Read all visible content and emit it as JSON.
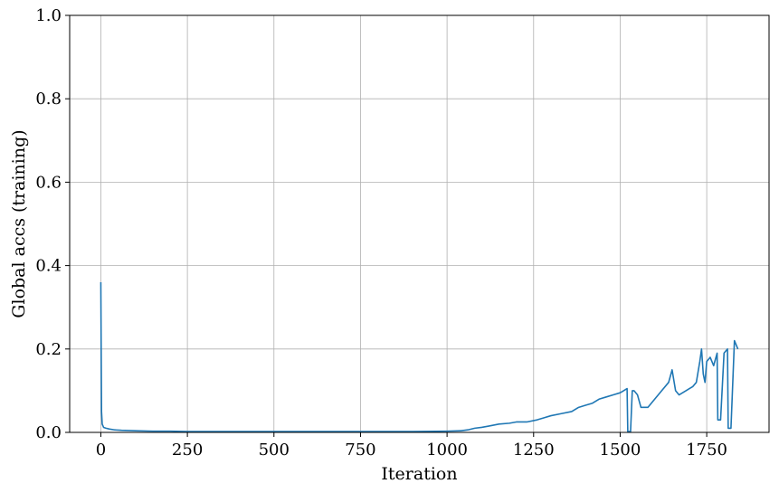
{
  "chart_data": {
    "type": "line",
    "title": "",
    "xlabel": "Iteration",
    "ylabel": "Global accs (training)",
    "xlim": [
      -90,
      1930
    ],
    "ylim": [
      0.0,
      1.0
    ],
    "xticks": [
      0,
      250,
      500,
      750,
      1000,
      1250,
      1500,
      1750
    ],
    "xtick_labels": [
      "0",
      "250",
      "500",
      "750",
      "1000",
      "1250",
      "1500",
      "1750"
    ],
    "yticks": [
      0.0,
      0.2,
      0.4,
      0.6,
      0.8,
      1.0
    ],
    "ytick_labels": [
      "0.0",
      "0.2",
      "0.4",
      "0.6",
      "0.8",
      "1.0"
    ],
    "grid": true,
    "series": [
      {
        "color": "#1f77b4",
        "x": [
          0,
          1,
          2,
          4,
          8,
          15,
          25,
          40,
          60,
          100,
          150,
          200,
          250,
          300,
          400,
          500,
          600,
          700,
          800,
          900,
          1000,
          1040,
          1060,
          1080,
          1100,
          1120,
          1150,
          1180,
          1200,
          1230,
          1260,
          1280,
          1300,
          1330,
          1360,
          1380,
          1400,
          1420,
          1440,
          1460,
          1480,
          1500,
          1510,
          1520,
          1522,
          1530,
          1535,
          1540,
          1550,
          1560,
          1580,
          1600,
          1620,
          1640,
          1650,
          1660,
          1670,
          1690,
          1710,
          1720,
          1730,
          1735,
          1740,
          1745,
          1750,
          1760,
          1770,
          1780,
          1782,
          1790,
          1800,
          1810,
          1812,
          1820,
          1830,
          1840
        ],
        "y": [
          0.36,
          0.2,
          0.05,
          0.02,
          0.012,
          0.01,
          0.008,
          0.006,
          0.005,
          0.004,
          0.003,
          0.003,
          0.002,
          0.002,
          0.002,
          0.002,
          0.002,
          0.002,
          0.002,
          0.002,
          0.003,
          0.004,
          0.006,
          0.01,
          0.012,
          0.015,
          0.02,
          0.022,
          0.025,
          0.025,
          0.03,
          0.035,
          0.04,
          0.045,
          0.05,
          0.06,
          0.065,
          0.07,
          0.08,
          0.085,
          0.09,
          0.095,
          0.1,
          0.105,
          0.002,
          0.002,
          0.1,
          0.1,
          0.09,
          0.06,
          0.06,
          0.08,
          0.1,
          0.12,
          0.15,
          0.1,
          0.09,
          0.1,
          0.11,
          0.12,
          0.17,
          0.2,
          0.14,
          0.12,
          0.17,
          0.18,
          0.16,
          0.19,
          0.03,
          0.03,
          0.19,
          0.2,
          0.01,
          0.01,
          0.22,
          0.2
        ]
      }
    ]
  }
}
